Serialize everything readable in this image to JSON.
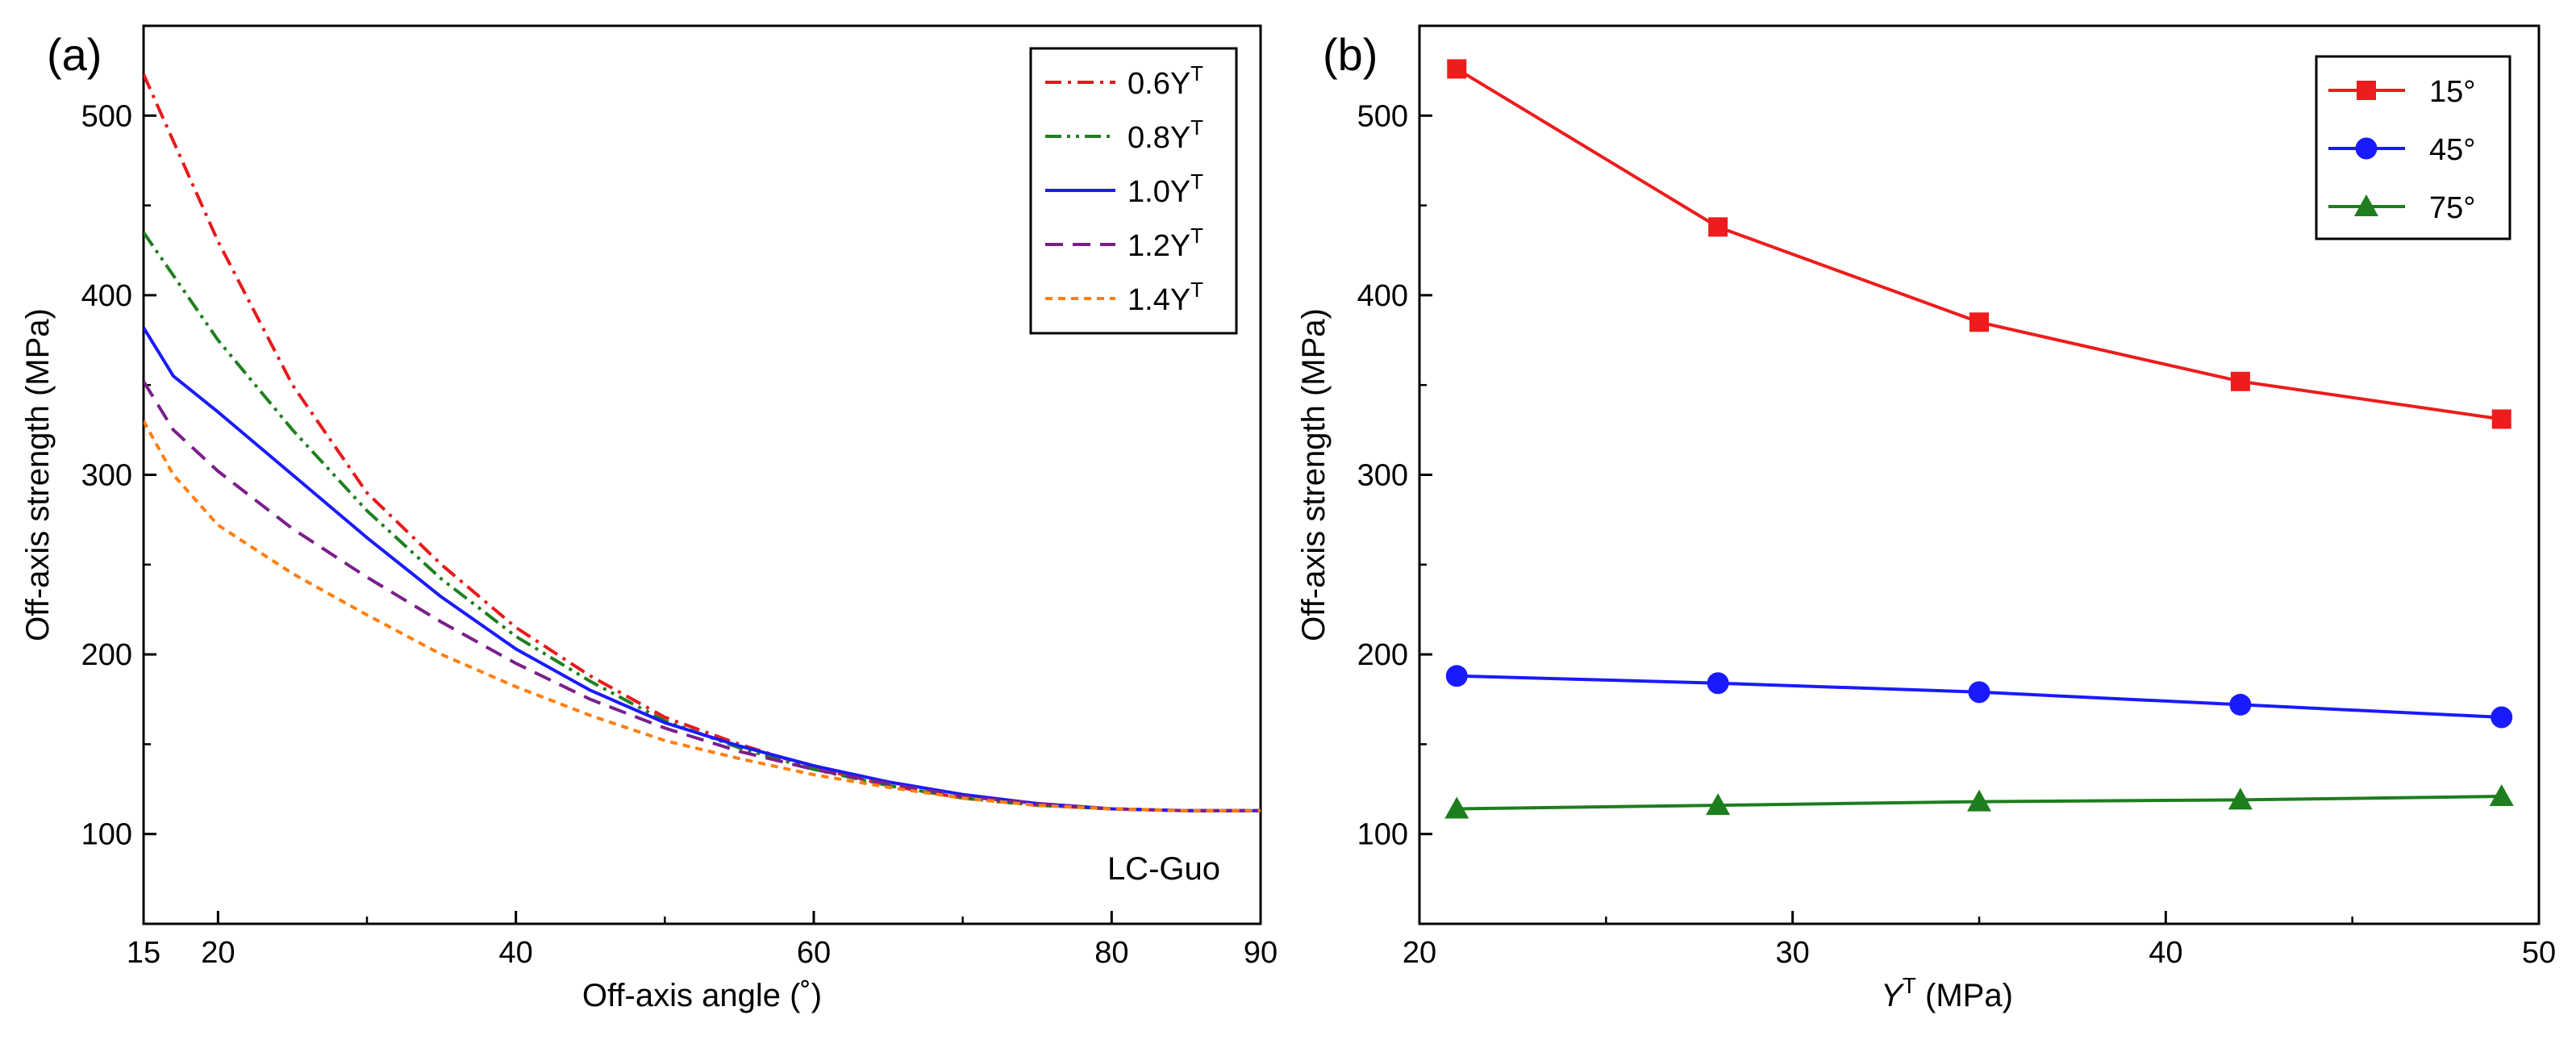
{
  "chart_data": [
    {
      "panel_label": "(a)",
      "type": "line",
      "xlabel": "Off-axis angle (˚)",
      "ylabel": "Off-axis strength (MPa)",
      "xlim": [
        15,
        90
      ],
      "ylim": [
        50,
        550
      ],
      "x_ticks": [
        15,
        20,
        40,
        60,
        80,
        90
      ],
      "y_ticks": [
        100,
        200,
        300,
        400,
        500
      ],
      "legend_position": "top-right",
      "annotation": "LC-Guo",
      "legend_suffix": "T",
      "series": [
        {
          "name": "0.6Y",
          "color": "#e8191b",
          "dash": "dashdot",
          "x": [
            15,
            20,
            25,
            30,
            35,
            40,
            45,
            50,
            55,
            60,
            65,
            70,
            75,
            80,
            85,
            90
          ],
          "values": [
            523,
            430,
            350,
            290,
            250,
            215,
            188,
            165,
            150,
            137,
            127,
            120,
            116,
            114,
            113,
            113
          ]
        },
        {
          "name": "0.8Y",
          "color": "#1f7f1f",
          "dash": "dashdotdot",
          "x": [
            15,
            20,
            25,
            30,
            35,
            40,
            45,
            50,
            55,
            60,
            65,
            70,
            75,
            80,
            85,
            90
          ],
          "values": [
            435,
            375,
            325,
            280,
            242,
            210,
            185,
            163,
            148,
            136,
            127,
            120,
            116,
            114,
            113,
            113
          ]
        },
        {
          "name": "1.0Y",
          "color": "#1a1aff",
          "dash": "solid",
          "x": [
            15,
            17,
            20,
            25,
            30,
            35,
            40,
            45,
            50,
            55,
            60,
            65,
            70,
            75,
            80,
            85,
            90
          ],
          "values": [
            382,
            355,
            335,
            300,
            265,
            232,
            203,
            180,
            162,
            149,
            138,
            129,
            122,
            117,
            114,
            113,
            113
          ]
        },
        {
          "name": "1.2Y",
          "color": "#7a1f8a",
          "dash": "dashed",
          "x": [
            15,
            17,
            20,
            25,
            30,
            35,
            40,
            45,
            50,
            55,
            60,
            65,
            70,
            75,
            80,
            85,
            90
          ],
          "values": [
            352,
            325,
            302,
            270,
            243,
            218,
            195,
            175,
            159,
            146,
            136,
            128,
            121,
            117,
            114,
            113,
            113
          ]
        },
        {
          "name": "1.4Y",
          "color": "#ff7f0e",
          "dash": "dotted",
          "x": [
            15,
            17,
            20,
            25,
            30,
            35,
            40,
            45,
            50,
            55,
            60,
            65,
            70,
            75,
            80,
            85,
            90
          ],
          "values": [
            330,
            300,
            272,
            245,
            222,
            200,
            182,
            166,
            152,
            142,
            133,
            126,
            120,
            116,
            114,
            113,
            113
          ]
        }
      ]
    },
    {
      "panel_label": "(b)",
      "type": "line",
      "xlabel_main": "Y",
      "xlabel_sup": "T",
      "xlabel_rest": " (MPa)",
      "ylabel": "Off-axis strength (MPa)",
      "xlim": [
        20,
        50
      ],
      "ylim": [
        50,
        550
      ],
      "x_ticks": [
        20,
        30,
        40,
        50
      ],
      "y_ticks": [
        100,
        200,
        300,
        400,
        500
      ],
      "legend_position": "top-right",
      "series": [
        {
          "name": "15°",
          "color": "#ee1c1c",
          "marker": "square",
          "x": [
            21,
            28,
            35,
            42,
            49
          ],
          "values": [
            526,
            438,
            385,
            352,
            331
          ]
        },
        {
          "name": "45°",
          "color": "#1a1aff",
          "marker": "circle",
          "x": [
            21,
            28,
            35,
            42,
            49
          ],
          "values": [
            188,
            184,
            179,
            172,
            165
          ]
        },
        {
          "name": "75°",
          "color": "#1e7d1e",
          "marker": "triangle",
          "x": [
            21,
            28,
            35,
            42,
            49
          ],
          "values": [
            114,
            116,
            118,
            119,
            121
          ]
        }
      ]
    }
  ]
}
